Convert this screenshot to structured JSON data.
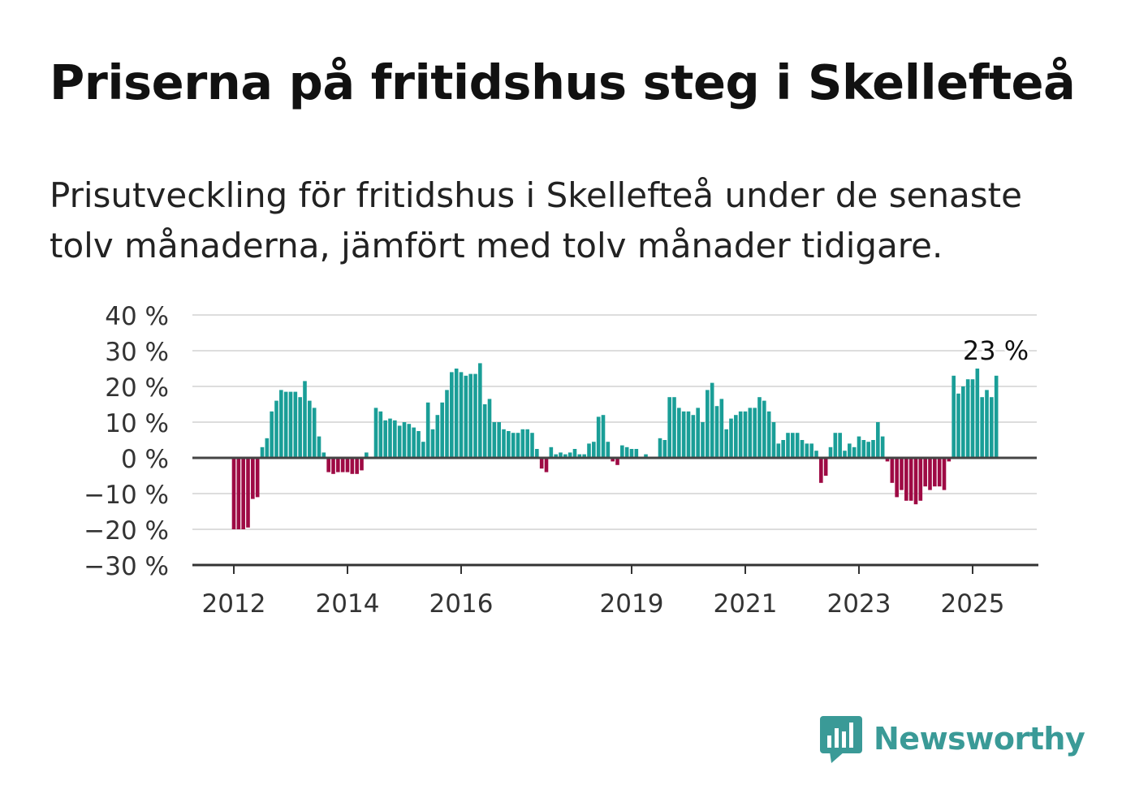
{
  "title": "Priserna på fritidshus steg i Skellefteå",
  "subtitle": "Prisutveckling för fritidshus i Skellefteå under de senaste tolv månaderna, jämfört med tolv månader tidigare.",
  "brand": {
    "name": "Newsworthy",
    "logo_icon": "newsworthy-bar-chart-bubble-icon",
    "color": "#3a9a97"
  },
  "chart_data": {
    "type": "bar",
    "x_start": "2012-01",
    "frequency": "monthly",
    "x_ticks": [
      "2012",
      "2014",
      "2016",
      "2019",
      "2021",
      "2023",
      "2025"
    ],
    "y_ticks": [
      "40 %",
      "30 %",
      "20 %",
      "10 %",
      "0 %",
      "−10 %",
      "−20 %",
      "−30 %"
    ],
    "ylim": [
      -30,
      40
    ],
    "unit": "%",
    "grid": true,
    "positive_color": "#1a9e97",
    "negative_color": "#9e0a44",
    "last_value_label": "23 %",
    "values": [
      -20,
      -20,
      -20,
      -19.5,
      -11.5,
      -11,
      3,
      5.5,
      13,
      16,
      19,
      18.5,
      18.5,
      18.5,
      17,
      21.5,
      16,
      14,
      6,
      1.5,
      -4,
      -4.5,
      -4,
      -4,
      -4,
      -4.5,
      -4.5,
      -3.5,
      1.5,
      0,
      14,
      13,
      10.5,
      11,
      10.5,
      9,
      10,
      9.5,
      8.5,
      7.5,
      4.5,
      15.5,
      8,
      12,
      15.5,
      19,
      24,
      25,
      24,
      23,
      23.5,
      23.5,
      26.5,
      15,
      16.5,
      10,
      10,
      8,
      7.5,
      7,
      7,
      8,
      8,
      7,
      2.5,
      -3,
      -4,
      3,
      1,
      1.5,
      1,
      1.5,
      2.5,
      1,
      1,
      4,
      4.5,
      11.5,
      12,
      4.5,
      -1,
      -2,
      3.5,
      3,
      2.5,
      2.5,
      0,
      1,
      0,
      0,
      5.5,
      5,
      17,
      17,
      14,
      13,
      13,
      12,
      14,
      10,
      19,
      21,
      14.5,
      16.5,
      8,
      11,
      12,
      13,
      13,
      14,
      14,
      17,
      16,
      13,
      10,
      4,
      5,
      7,
      7,
      7,
      5,
      4,
      4,
      2,
      -7,
      -5,
      3,
      7,
      7,
      2,
      4,
      3,
      6,
      5,
      4.5,
      5,
      10,
      6,
      -1,
      -7,
      -11,
      -9,
      -12,
      -12,
      -13,
      -12,
      -8,
      -9,
      -8,
      -8,
      -9,
      -1,
      23,
      18,
      20,
      22,
      22,
      25,
      17,
      19,
      17,
      23
    ]
  }
}
